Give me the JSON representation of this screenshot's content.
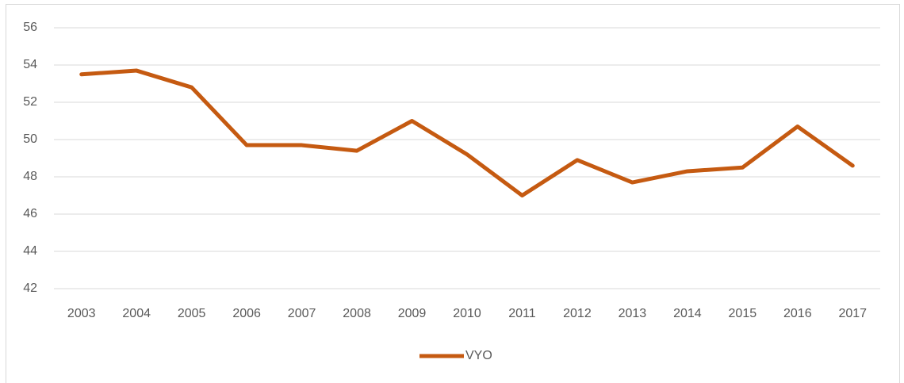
{
  "chart_data": {
    "type": "line",
    "categories": [
      "2003",
      "2004",
      "2005",
      "2006",
      "2007",
      "2008",
      "2009",
      "2010",
      "2011",
      "2012",
      "2013",
      "2014",
      "2015",
      "2016",
      "2017"
    ],
    "series": [
      {
        "name": "VYO",
        "color": "#c55a11",
        "values": [
          53.5,
          53.7,
          52.8,
          49.7,
          49.7,
          49.4,
          51.0,
          49.2,
          47.0,
          48.9,
          47.7,
          48.3,
          48.5,
          50.7,
          48.6
        ]
      }
    ],
    "ylim": [
      42,
      56
    ],
    "yticks": [
      42,
      44,
      46,
      48,
      50,
      52,
      54,
      56
    ],
    "grid": true,
    "legend": "bottom"
  }
}
